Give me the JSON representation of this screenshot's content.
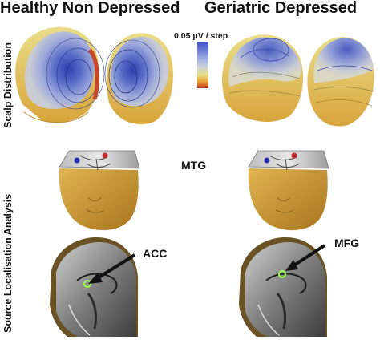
{
  "headers": {
    "left": "Healthy Non Depressed",
    "right": "Geriatric Depressed"
  },
  "row_labels": {
    "top": "Scalp Distribution",
    "bottom": "Source Localisation Analysis"
  },
  "scale": {
    "label": "0.05 μV / step",
    "colors": [
      "#3f4fc4",
      "#6f82d6",
      "#a8b6e6",
      "#cfd3d9",
      "#e8dc82",
      "#e6a233",
      "#c7342a"
    ]
  },
  "labels": {
    "mtg": "MTG",
    "acc": "ACC",
    "mfg": "MFG"
  },
  "colors": {
    "skin": "#c9982f",
    "brain_gray": "#8d8d8d",
    "arrow": "#111111",
    "marker": "#9bff4a"
  }
}
